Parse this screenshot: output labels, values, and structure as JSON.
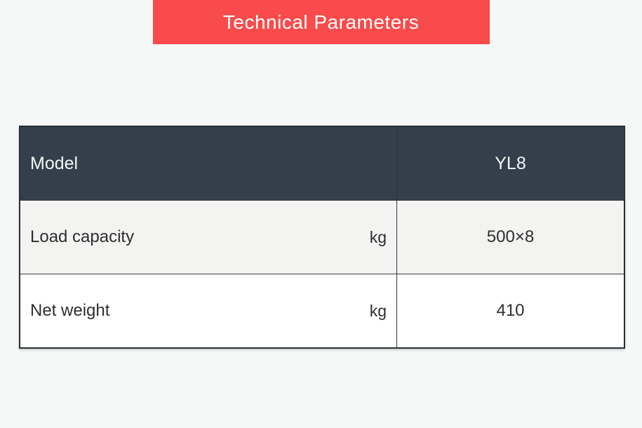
{
  "page": {
    "background_color": "#f6f7f7"
  },
  "banner": {
    "title": "Technical Parameters",
    "background_color": "#f94b4b",
    "text_color": "#ffffff"
  },
  "table": {
    "header": {
      "param_label": "Model",
      "value_label": "YL8"
    },
    "rows": [
      {
        "param": "Load capacity",
        "unit": "kg",
        "value": "500×8"
      },
      {
        "param": "Net weight",
        "unit": "kg",
        "value": "410"
      }
    ],
    "colors": {
      "header_bg": "#33404b",
      "header_text": "#f5f6f7",
      "row_alt_bg": "#f3f4f2",
      "row_bg": "#ffffff",
      "border": "#2b2f36",
      "body_text": "#2e2e2e"
    }
  }
}
